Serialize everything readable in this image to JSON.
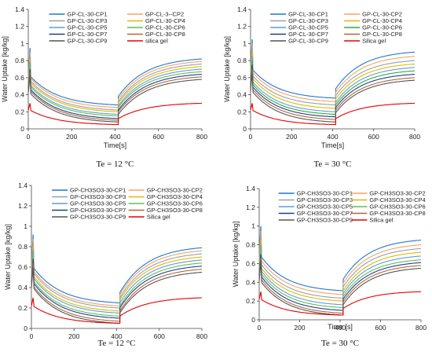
{
  "chart_data": [
    {
      "type": "line",
      "caption": "Te = 12 °C",
      "xlabel": "Time[s]",
      "ylabel": "Water Uptake [kg/kg]",
      "xlim": [
        0,
        800
      ],
      "ylim": [
        0,
        1.4
      ],
      "xticks": [
        "0",
        "200",
        "400",
        "600",
        "800"
      ],
      "yticks": [
        "0",
        "0.2",
        "0.4",
        "0.6",
        "0.8",
        "1",
        "1.2",
        "1.4"
      ],
      "legend_position": "top",
      "grid": false,
      "series": [
        {
          "name": "GP-CL-30-CP1",
          "color": "#1f77d4",
          "peak": 0.95,
          "desorb_start": 0.62,
          "desorb_end": 0.28,
          "adsorb_start": 0.38,
          "adsorb_end": 0.82
        },
        {
          "name": "GP-CL-3--CP2",
          "color": "#f4a460",
          "peak": 0.9,
          "desorb_start": 0.6,
          "desorb_end": 0.25,
          "adsorb_start": 0.35,
          "adsorb_end": 0.79
        },
        {
          "name": "GP-CL-30-CP3",
          "color": "#9aa0a6",
          "peak": 0.86,
          "desorb_start": 0.57,
          "desorb_end": 0.22,
          "adsorb_start": 0.32,
          "adsorb_end": 0.76
        },
        {
          "name": "GP-CL-30-CP4",
          "color": "#e6b800",
          "peak": 0.82,
          "desorb_start": 0.55,
          "desorb_end": 0.2,
          "adsorb_start": 0.3,
          "adsorb_end": 0.73
        },
        {
          "name": "GP-CL-30-CP5",
          "color": "#5aa0d8",
          "peak": 0.78,
          "desorb_start": 0.52,
          "desorb_end": 0.17,
          "adsorb_start": 0.27,
          "adsorb_end": 0.7
        },
        {
          "name": "GP-CL-30-CP6",
          "color": "#66bb55",
          "peak": 0.74,
          "desorb_start": 0.5,
          "desorb_end": 0.15,
          "adsorb_start": 0.25,
          "adsorb_end": 0.67
        },
        {
          "name": "GP-CL-30-CP7",
          "color": "#1f3f8f",
          "peak": 0.7,
          "desorb_start": 0.47,
          "desorb_end": 0.12,
          "adsorb_start": 0.22,
          "adsorb_end": 0.64
        },
        {
          "name": "GP-CL-30-CP8",
          "color": "#b0683a",
          "peak": 0.66,
          "desorb_start": 0.45,
          "desorb_end": 0.1,
          "adsorb_start": 0.2,
          "adsorb_end": 0.61
        },
        {
          "name": "GP-CL-30-CP9",
          "color": "#555555",
          "peak": 0.62,
          "desorb_start": 0.42,
          "desorb_end": 0.08,
          "adsorb_start": 0.17,
          "adsorb_end": 0.58
        },
        {
          "name": "silica gel",
          "color": "#e60000",
          "peak": 0.3,
          "desorb_start": 0.22,
          "desorb_end": 0.05,
          "adsorb_start": 0.12,
          "adsorb_end": 0.3
        }
      ]
    },
    {
      "type": "line",
      "caption": "Te = 30 °C",
      "xlabel": "Time[s]",
      "ylabel": "Water Uptake [kg/kg]",
      "xlim": [
        0,
        800
      ],
      "ylim": [
        0,
        1.4
      ],
      "xticks": [
        "0",
        "200",
        "400",
        "600",
        "800"
      ],
      "yticks": [
        "0",
        "0.2",
        "0.4",
        "0.6",
        "0.8",
        "1",
        "1.2",
        "1.4"
      ],
      "legend_position": "top",
      "grid": false,
      "series": [
        {
          "name": "GP-CL-30-CP1",
          "color": "#1f77d4",
          "peak": 1.05,
          "desorb_start": 0.7,
          "desorb_end": 0.36,
          "adsorb_start": 0.47,
          "adsorb_end": 0.9
        },
        {
          "name": "GP-CL-30-CP2",
          "color": "#f4a460",
          "peak": 1.0,
          "desorb_start": 0.67,
          "desorb_end": 0.32,
          "adsorb_start": 0.43,
          "adsorb_end": 0.85
        },
        {
          "name": "GP-CL-30-CP3",
          "color": "#9aa0a6",
          "peak": 0.95,
          "desorb_start": 0.63,
          "desorb_end": 0.28,
          "adsorb_start": 0.39,
          "adsorb_end": 0.8
        },
        {
          "name": "GP-CL-30-CP4",
          "color": "#e6b800",
          "peak": 0.9,
          "desorb_start": 0.6,
          "desorb_end": 0.24,
          "adsorb_start": 0.35,
          "adsorb_end": 0.76
        },
        {
          "name": "GP-CL-30-CP5",
          "color": "#5aa0d8",
          "peak": 0.85,
          "desorb_start": 0.56,
          "desorb_end": 0.2,
          "adsorb_start": 0.31,
          "adsorb_end": 0.72
        },
        {
          "name": "GP-CL-30-CP6",
          "color": "#33aa33",
          "peak": 0.8,
          "desorb_start": 0.53,
          "desorb_end": 0.17,
          "adsorb_start": 0.28,
          "adsorb_end": 0.68
        },
        {
          "name": "GP-CL-30-CP7",
          "color": "#1f3f8f",
          "peak": 0.75,
          "desorb_start": 0.5,
          "desorb_end": 0.14,
          "adsorb_start": 0.25,
          "adsorb_end": 0.64
        },
        {
          "name": "GP-CL-30-CP8",
          "color": "#b0683a",
          "peak": 0.7,
          "desorb_start": 0.47,
          "desorb_end": 0.11,
          "adsorb_start": 0.22,
          "adsorb_end": 0.6
        },
        {
          "name": "GP-CL-30-CP9",
          "color": "#555555",
          "peak": 0.65,
          "desorb_start": 0.44,
          "desorb_end": 0.08,
          "adsorb_start": 0.19,
          "adsorb_end": 0.57
        },
        {
          "name": "Silica gel",
          "color": "#e60000",
          "peak": 0.3,
          "desorb_start": 0.22,
          "desorb_end": 0.05,
          "adsorb_start": 0.12,
          "adsorb_end": 0.3
        }
      ]
    },
    {
      "type": "line",
      "caption": "Te = 12 °C",
      "xlabel": "",
      "ylabel": "Water Uptake [kg/kg]",
      "xlim": [
        0,
        800
      ],
      "ylim": [
        0,
        1.4
      ],
      "xticks": [
        "0",
        "200",
        "400",
        "600",
        "800"
      ],
      "yticks": [
        "0",
        "0.2",
        "0.4",
        "0.6",
        "0.8",
        "1",
        "1.2",
        "1.4"
      ],
      "legend_position": "top",
      "grid": false,
      "series": [
        {
          "name": "GP-CH3SO3-30-CP1",
          "color": "#1f77d4",
          "peak": 0.92,
          "desorb_start": 0.6,
          "desorb_end": 0.25,
          "adsorb_start": 0.35,
          "adsorb_end": 0.79
        },
        {
          "name": "GP-CH3SO3-30-CP2",
          "color": "#f4a460",
          "peak": 0.88,
          "desorb_start": 0.57,
          "desorb_end": 0.22,
          "adsorb_start": 0.33,
          "adsorb_end": 0.76
        },
        {
          "name": "GP-CH3SO3-30-CP3",
          "color": "#9aa0a6",
          "peak": 0.84,
          "desorb_start": 0.55,
          "desorb_end": 0.2,
          "adsorb_start": 0.3,
          "adsorb_end": 0.73
        },
        {
          "name": "GP-CH3SO3-30-CP4",
          "color": "#e6b800",
          "peak": 0.8,
          "desorb_start": 0.52,
          "desorb_end": 0.17,
          "adsorb_start": 0.28,
          "adsorb_end": 0.7
        },
        {
          "name": "GP-CH3SO3-30-CP5",
          "color": "#5aa0d8",
          "peak": 0.76,
          "desorb_start": 0.5,
          "desorb_end": 0.15,
          "adsorb_start": 0.25,
          "adsorb_end": 0.67
        },
        {
          "name": "GP-CH3SO3-30-CP6",
          "color": "#66bb55",
          "peak": 0.72,
          "desorb_start": 0.47,
          "desorb_end": 0.12,
          "adsorb_start": 0.22,
          "adsorb_end": 0.64
        },
        {
          "name": "GP-CH3SO3-30-CP7",
          "color": "#1f3f8f",
          "peak": 0.68,
          "desorb_start": 0.45,
          "desorb_end": 0.1,
          "adsorb_start": 0.2,
          "adsorb_end": 0.61
        },
        {
          "name": "GP-CH3SO3-30-CP8",
          "color": "#b0683a",
          "peak": 0.64,
          "desorb_start": 0.42,
          "desorb_end": 0.07,
          "adsorb_start": 0.17,
          "adsorb_end": 0.58
        },
        {
          "name": "GP-CH3SO3-30-CP9",
          "color": "#555555",
          "peak": 0.6,
          "desorb_start": 0.4,
          "desorb_end": 0.05,
          "adsorb_start": 0.15,
          "adsorb_end": 0.55
        },
        {
          "name": "Silica gel",
          "color": "#e60000",
          "peak": 0.3,
          "desorb_start": 0.22,
          "desorb_end": 0.05,
          "adsorb_start": 0.12,
          "adsorb_end": 0.3
        }
      ]
    },
    {
      "type": "line",
      "caption": "Te = 30 °C",
      "xlabel": "Time [s]",
      "ylabel": "Water Uptake [kg/kg]",
      "xlim": [
        0,
        800
      ],
      "ylim": [
        0,
        1.4
      ],
      "xticks": [
        "0",
        "200",
        "400",
        "600",
        "800"
      ],
      "yticks": [
        "0",
        "0.2",
        "0.4",
        "0.6",
        "0.8",
        "1",
        "1.2",
        "1.4"
      ],
      "legend_position": "top",
      "grid": false,
      "series": [
        {
          "name": "GP-CH3SO3-30-CP1",
          "color": "#1f77d4",
          "peak": 1.0,
          "desorb_start": 0.68,
          "desorb_end": 0.31,
          "adsorb_start": 0.43,
          "adsorb_end": 0.85
        },
        {
          "name": "GP-CH3SO3-30-CP2",
          "color": "#f4a460",
          "peak": 0.95,
          "desorb_start": 0.64,
          "desorb_end": 0.27,
          "adsorb_start": 0.39,
          "adsorb_end": 0.8
        },
        {
          "name": "GP-CH3SO3-30-CP3",
          "color": "#9aa0a6",
          "peak": 0.9,
          "desorb_start": 0.6,
          "desorb_end": 0.23,
          "adsorb_start": 0.35,
          "adsorb_end": 0.76
        },
        {
          "name": "GP-CH3SO3-30-CP4",
          "color": "#e6b800",
          "peak": 0.85,
          "desorb_start": 0.56,
          "desorb_end": 0.2,
          "adsorb_start": 0.31,
          "adsorb_end": 0.72
        },
        {
          "name": "GP-CH3SO3-30-CP5",
          "color": "#5aa0d8",
          "peak": 0.8,
          "desorb_start": 0.53,
          "desorb_end": 0.16,
          "adsorb_start": 0.28,
          "adsorb_end": 0.68
        },
        {
          "name": "GP-CH3SO3-30-CP6",
          "color": "#66bb55",
          "peak": 0.75,
          "desorb_start": 0.5,
          "desorb_end": 0.13,
          "adsorb_start": 0.25,
          "adsorb_end": 0.64
        },
        {
          "name": "GP-CH3SO3-30-CP7",
          "color": "#1f3f8f",
          "peak": 0.7,
          "desorb_start": 0.47,
          "desorb_end": 0.1,
          "adsorb_start": 0.22,
          "adsorb_end": 0.61
        },
        {
          "name": "GP-CH3SO3-30-CP8",
          "color": "#b0683a",
          "peak": 0.66,
          "desorb_start": 0.44,
          "desorb_end": 0.07,
          "adsorb_start": 0.19,
          "adsorb_end": 0.58
        },
        {
          "name": "GP-CH3SO3-30-CP9",
          "color": "#555555",
          "peak": 0.62,
          "desorb_start": 0.41,
          "desorb_end": 0.05,
          "adsorb_start": 0.16,
          "adsorb_end": 0.55
        },
        {
          "name": "Silica gel",
          "color": "#e60000",
          "peak": 0.3,
          "desorb_start": 0.22,
          "desorb_end": 0.05,
          "adsorb_start": 0.12,
          "adsorb_end": 0.3
        }
      ]
    }
  ]
}
